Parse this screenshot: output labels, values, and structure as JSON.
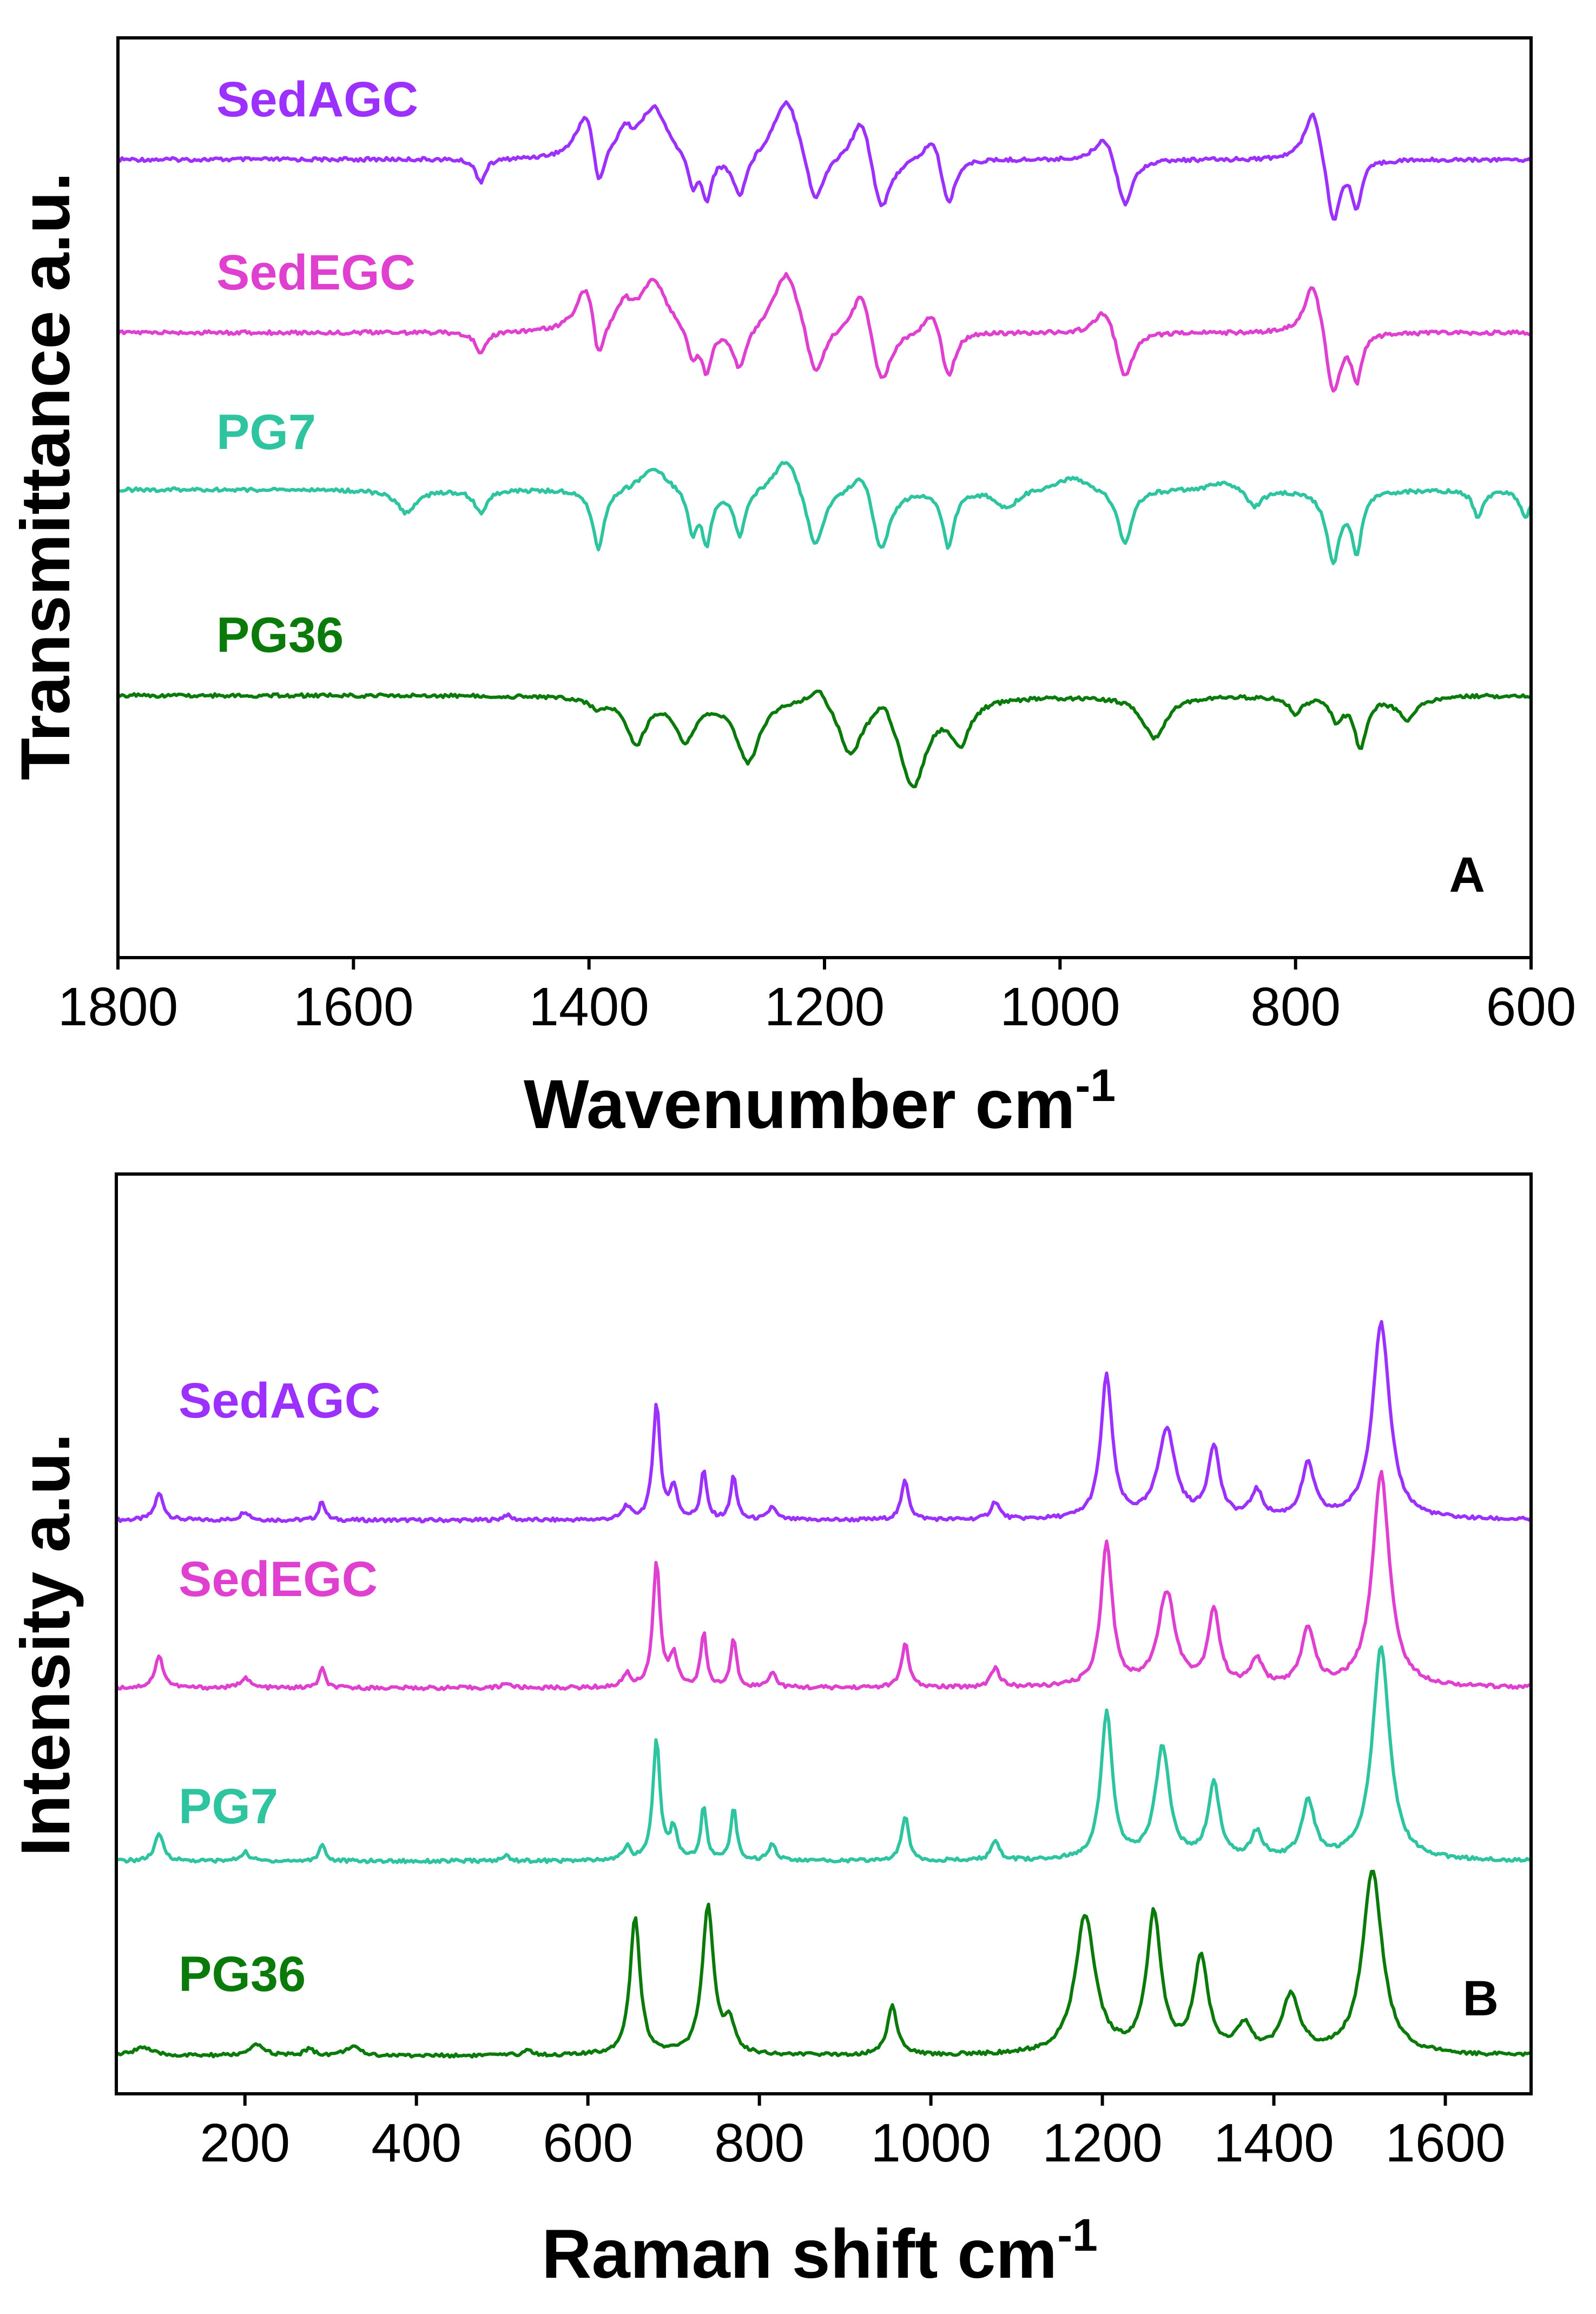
{
  "colors": {
    "SedAGC": "#9b30ff",
    "SedEGC": "#e040d0",
    "PG7": "#2ec4a0",
    "PG36": "#0a7a0a"
  },
  "chart_data": [
    {
      "panel": "A",
      "type": "line",
      "xlabel": "Wavenumber cm",
      "xlabel_sup": "-1",
      "ylabel": "Transmittance a.u.",
      "xlim": [
        1800,
        600
      ],
      "x_reversed": true,
      "xticks": [
        1800,
        1600,
        1400,
        1200,
        1000,
        800,
        600
      ],
      "y_ticks_shown": false,
      "grid": false,
      "series": [
        {
          "name": "SedAGC",
          "offset": 3.0,
          "peaks": [
            [
              1492,
              0.25,
              5
            ],
            [
              1392,
              0.55,
              6
            ],
            [
              1370,
              -0.25,
              8
            ],
            [
              1312,
              0.35,
              5
            ],
            [
              1300,
              0.45,
              5
            ],
            [
              1272,
              0.45,
              7
            ],
            [
              1208,
              0.6,
              9
            ],
            [
              1152,
              0.65,
              10
            ],
            [
              1095,
              0.55,
              7
            ],
            [
              945,
              0.55,
              8
            ],
            [
              768,
              0.75,
              7
            ],
            [
              748,
              0.5,
              5
            ],
            [
              1402,
              -0.55,
              10
            ],
            [
              1345,
              -0.55,
              14
            ],
            [
              1232,
              -0.7,
              14
            ],
            [
              1168,
              -0.55,
              10
            ],
            [
              1108,
              -0.3,
              9
            ],
            [
              962,
              -0.3,
              10
            ],
            [
              785,
              -0.6,
              9
            ]
          ]
        },
        {
          "name": "SedEGC",
          "offset": 2.0,
          "peaks": [
            [
              1492,
              0.25,
              5
            ],
            [
              1392,
              0.55,
              6
            ],
            [
              1370,
              -0.25,
              8
            ],
            [
              1312,
              0.35,
              5
            ],
            [
              1300,
              0.45,
              5
            ],
            [
              1272,
              0.45,
              7
            ],
            [
              1208,
              0.6,
              9
            ],
            [
              1152,
              0.65,
              10
            ],
            [
              1095,
              0.55,
              7
            ],
            [
              945,
              0.55,
              8
            ],
            [
              768,
              0.75,
              7
            ],
            [
              748,
              0.5,
              5
            ],
            [
              1402,
              -0.55,
              10
            ],
            [
              1345,
              -0.55,
              14
            ],
            [
              1232,
              -0.7,
              14
            ],
            [
              1168,
              -0.55,
              10
            ],
            [
              1108,
              -0.3,
              9
            ],
            [
              962,
              -0.3,
              10
            ],
            [
              785,
              -0.6,
              9
            ]
          ]
        },
        {
          "name": "PG7",
          "offset": 1.0,
          "peaks": [
            [
              1555,
              0.25,
              10
            ],
            [
              1492,
              0.25,
              6
            ],
            [
              1392,
              0.65,
              6
            ],
            [
              1312,
              0.45,
              5
            ],
            [
              1300,
              0.55,
              5
            ],
            [
              1272,
              0.5,
              6
            ],
            [
              1208,
              0.65,
              9
            ],
            [
              1152,
              0.7,
              9
            ],
            [
              1095,
              0.6,
              6
            ],
            [
              1045,
              0.2,
              10
            ],
            [
              945,
              0.6,
              7
            ],
            [
              835,
              0.2,
              8
            ],
            [
              768,
              0.75,
              7
            ],
            [
              748,
              0.65,
              5
            ],
            [
              645,
              0.3,
              5
            ],
            [
              605,
              0.3,
              5
            ],
            [
              1345,
              -0.25,
              14
            ],
            [
              1232,
              -0.4,
              12
            ],
            [
              1168,
              -0.3,
              10
            ],
            [
              990,
              -0.15,
              15
            ],
            [
              860,
              -0.1,
              15
            ]
          ]
        },
        {
          "name": "PG36",
          "offset": 0.0,
          "peaks": [
            [
              1392,
              0.1,
              8
            ],
            [
              1360,
              0.5,
              10
            ],
            [
              1318,
              0.45,
              10
            ],
            [
              1265,
              0.7,
              12
            ],
            [
              1178,
              0.6,
              12
            ],
            [
              1125,
              0.95,
              14
            ],
            [
              1085,
              0.45,
              10
            ],
            [
              920,
              0.45,
              12
            ],
            [
              800,
              0.2,
              6
            ],
            [
              765,
              0.25,
              6
            ],
            [
              745,
              0.55,
              6
            ],
            [
              705,
              0.25,
              10
            ],
            [
              1205,
              -0.2,
              10
            ],
            [
              1150,
              -0.2,
              8
            ]
          ]
        }
      ],
      "y_range": [
        -1.2,
        3.9
      ]
    },
    {
      "panel": "B",
      "type": "line",
      "xlabel": "Raman shift cm",
      "xlabel_sup": "-1",
      "ylabel": "Intensity a.u.",
      "xlim": [
        50,
        1700
      ],
      "x_reversed": false,
      "xticks": [
        200,
        400,
        600,
        800,
        1000,
        1200,
        1400,
        1600
      ],
      "y_ticks_shown": false,
      "grid": false,
      "series": [
        {
          "name": "SedAGC",
          "offset": 3.3,
          "peaks": [
            [
              100,
              0.3,
              6
            ],
            [
              200,
              0.1,
              6
            ],
            [
              290,
              0.22,
              4
            ],
            [
              505,
              0.06,
              5
            ],
            [
              645,
              0.15,
              5
            ],
            [
              680,
              1.3,
              5
            ],
            [
              700,
              0.35,
              5
            ],
            [
              735,
              0.55,
              4
            ],
            [
              770,
              0.5,
              4
            ],
            [
              815,
              0.15,
              5
            ],
            [
              970,
              0.45,
              5
            ],
            [
              1075,
              0.2,
              6
            ],
            [
              1205,
              1.6,
              8
            ],
            [
              1275,
              1.0,
              12
            ],
            [
              1330,
              0.8,
              8
            ],
            [
              1380,
              0.3,
              8
            ],
            [
              1440,
              0.6,
              9
            ],
            [
              1525,
              2.2,
              12
            ]
          ]
        },
        {
          "name": "SedEGC",
          "offset": 2.2,
          "peaks": [
            [
              100,
              0.35,
              6
            ],
            [
              200,
              0.12,
              6
            ],
            [
              290,
              0.22,
              4
            ],
            [
              505,
              0.06,
              5
            ],
            [
              645,
              0.15,
              5
            ],
            [
              680,
              1.4,
              5
            ],
            [
              700,
              0.35,
              5
            ],
            [
              735,
              0.6,
              4
            ],
            [
              770,
              0.55,
              4
            ],
            [
              815,
              0.18,
              5
            ],
            [
              970,
              0.5,
              5
            ],
            [
              1075,
              0.22,
              6
            ],
            [
              1205,
              1.6,
              8
            ],
            [
              1275,
              1.05,
              12
            ],
            [
              1330,
              0.85,
              8
            ],
            [
              1380,
              0.3,
              8
            ],
            [
              1440,
              0.65,
              9
            ],
            [
              1525,
              2.4,
              12
            ]
          ]
        },
        {
          "name": "PG7",
          "offset": 1.1,
          "peaks": [
            [
              100,
              0.3,
              6
            ],
            [
              200,
              0.1,
              6
            ],
            [
              290,
              0.2,
              4
            ],
            [
              505,
              0.06,
              5
            ],
            [
              645,
              0.15,
              5
            ],
            [
              680,
              1.35,
              5
            ],
            [
              700,
              0.35,
              5
            ],
            [
              735,
              0.6,
              4
            ],
            [
              770,
              0.6,
              4
            ],
            [
              815,
              0.2,
              5
            ],
            [
              970,
              0.5,
              5
            ],
            [
              1075,
              0.2,
              6
            ],
            [
              1205,
              1.65,
              8
            ],
            [
              1270,
              1.25,
              10
            ],
            [
              1330,
              0.85,
              8
            ],
            [
              1380,
              0.3,
              8
            ],
            [
              1440,
              0.65,
              9
            ],
            [
              1525,
              2.4,
              12
            ]
          ]
        },
        {
          "name": "PG36",
          "offset": 0.0,
          "peaks": [
            [
              80,
              0.1,
              12
            ],
            [
              215,
              0.12,
              10
            ],
            [
              275,
              0.08,
              6
            ],
            [
              325,
              0.1,
              10
            ],
            [
              530,
              0.06,
              6
            ],
            [
              655,
              1.55,
              7
            ],
            [
              740,
              1.65,
              8
            ],
            [
              765,
              0.35,
              7
            ],
            [
              955,
              0.55,
              7
            ],
            [
              1180,
              1.55,
              14
            ],
            [
              1260,
              1.55,
              10
            ],
            [
              1315,
              1.05,
              10
            ],
            [
              1365,
              0.3,
              10
            ],
            [
              1420,
              0.65,
              12
            ],
            [
              1515,
              2.05,
              14
            ]
          ]
        }
      ],
      "y_range": [
        -0.4,
        6.4
      ]
    }
  ]
}
